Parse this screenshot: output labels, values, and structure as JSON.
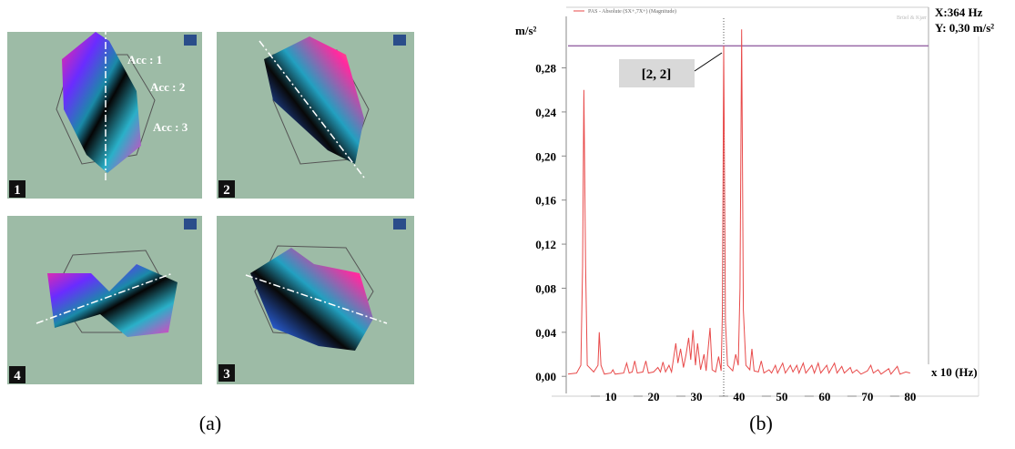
{
  "panel_a": {
    "panels": [
      {
        "label": "1"
      },
      {
        "label": "2"
      },
      {
        "label": "4"
      },
      {
        "label": "3"
      }
    ],
    "accelerometers": [
      "Acc : 1",
      "Acc : 2",
      "Acc : 3"
    ],
    "caption": "(a)"
  },
  "chart_data": {
    "type": "line",
    "caption": "(b)",
    "legend_text": "PAS - Absolute (SX+,7X+) (Magnitude)",
    "brand": "Brüel & Kjær",
    "y_label": "m/s²",
    "x_label": "x 10 (Hz)",
    "cursor_x_text": "X:364 Hz",
    "cursor_y_text": "Y: 0,30 m/s²",
    "annotation": "[2, 2]",
    "cursor": {
      "x": 36.4,
      "y": 0.3
    },
    "xlim": [
      0,
      96
    ],
    "ylim": [
      -0.018,
      0.335
    ],
    "xticks": [
      10,
      20,
      30,
      40,
      50,
      60,
      70,
      80
    ],
    "yticks": [
      {
        "value": 0,
        "label": "0,00"
      },
      {
        "value": 0.04,
        "label": "0,04"
      },
      {
        "value": 0.08,
        "label": "0,08"
      },
      {
        "value": 0.12,
        "label": "0,12"
      },
      {
        "value": 0.16,
        "label": "0,16"
      },
      {
        "value": 0.2,
        "label": "0,20"
      },
      {
        "value": 0.24,
        "label": "0,24"
      },
      {
        "value": 0.28,
        "label": "0,28"
      }
    ],
    "series": [
      {
        "color": "#e84a4a",
        "x": [
          0,
          2,
          3,
          3.4,
          3.7,
          4.1,
          4.5,
          6,
          7,
          7.3,
          7.7,
          8.5,
          10,
          10.5,
          11,
          13,
          13.7,
          14.3,
          15,
          15.6,
          16.2,
          17.5,
          18.2,
          18.8,
          20,
          21,
          21.6,
          22.2,
          22.8,
          23.6,
          24.2,
          25.2,
          25.7,
          26.3,
          27,
          27.6,
          28.2,
          28.7,
          29.2,
          29.8,
          30.3,
          31,
          31.8,
          32.3,
          33.2,
          33.7,
          34.5,
          35.2,
          35.8,
          36.1,
          36.4,
          36.8,
          37.3,
          38.5,
          39.2,
          39.8,
          40.2,
          40.6,
          41,
          41.6,
          42.5,
          43,
          43.5,
          44.5,
          45.2,
          45.8,
          47,
          47.6,
          48.5,
          49,
          50.2,
          50.8,
          52,
          52.6,
          53.5,
          54,
          55,
          55.6,
          57,
          57.6,
          58.5,
          59.1,
          60.5,
          61,
          62.3,
          62.9,
          64,
          64.6,
          66,
          66.5,
          67.5,
          68.5,
          70,
          70.8,
          71.4,
          72.5,
          73.2,
          75,
          75.5,
          77,
          77.6,
          79,
          80
        ],
        "values": [
          0.002,
          0.003,
          0.01,
          0.1,
          0.26,
          0.1,
          0.01,
          0.004,
          0.01,
          0.04,
          0.01,
          0.002,
          0.003,
          0.006,
          0.002,
          0.003,
          0.012,
          0.003,
          0.004,
          0.014,
          0.003,
          0.004,
          0.014,
          0.003,
          0.004,
          0.008,
          0.004,
          0.013,
          0.004,
          0.01,
          0.004,
          0.03,
          0.012,
          0.025,
          0.008,
          0.02,
          0.035,
          0.015,
          0.042,
          0.01,
          0.03,
          0.006,
          0.02,
          0.005,
          0.044,
          0.006,
          0.004,
          0.018,
          0.005,
          0.06,
          0.3,
          0.05,
          0.01,
          0.005,
          0.02,
          0.01,
          0.08,
          0.315,
          0.06,
          0.01,
          0.006,
          0.025,
          0.005,
          0.004,
          0.014,
          0.003,
          0.006,
          0.003,
          0.01,
          0.003,
          0.012,
          0.003,
          0.01,
          0.004,
          0.01,
          0.003,
          0.012,
          0.003,
          0.01,
          0.003,
          0.012,
          0.003,
          0.01,
          0.003,
          0.012,
          0.003,
          0.009,
          0.003,
          0.008,
          0.003,
          0.006,
          0.002,
          0.005,
          0.01,
          0.003,
          0.006,
          0.002,
          0.007,
          0.002,
          0.009,
          0.002,
          0.004,
          0.003
        ]
      }
    ]
  }
}
